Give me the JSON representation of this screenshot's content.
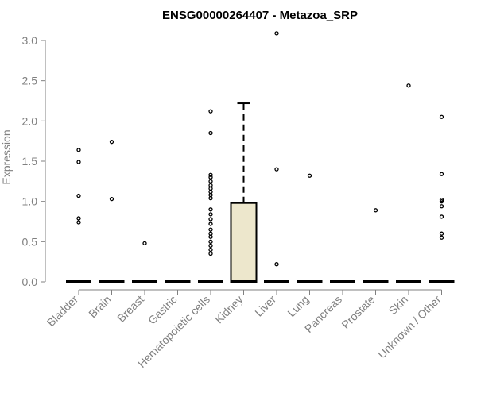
{
  "chart_data": {
    "type": "boxplot",
    "title": "ENSG00000264407 - Metazoa_SRP",
    "xlabel": "",
    "ylabel": "Expression",
    "ylim": [
      0,
      3.0
    ],
    "yticks": [
      0.0,
      0.5,
      1.0,
      1.5,
      2.0,
      2.5,
      3.0
    ],
    "ytick_labels": [
      "0.0",
      "0.5",
      "1.0",
      "1.5",
      "2.0",
      "2.5",
      "3.0"
    ],
    "categories": [
      "Bladder",
      "Brain",
      "Breast",
      "Gastric",
      "Hematopoietic cells",
      "Kidney",
      "Liver",
      "Lung",
      "Pancreas",
      "Prostate",
      "Skin",
      "Unknown / Other"
    ],
    "boxes": [
      {
        "category": "Bladder",
        "q1": 0,
        "median": 0,
        "q3": 0,
        "whisker_low": 0,
        "whisker_high": 0,
        "outliers": [
          0.74,
          0.79,
          1.07,
          1.49,
          1.64
        ]
      },
      {
        "category": "Brain",
        "q1": 0,
        "median": 0,
        "q3": 0,
        "whisker_low": 0,
        "whisker_high": 0,
        "outliers": [
          1.03,
          1.74
        ]
      },
      {
        "category": "Breast",
        "q1": 0,
        "median": 0,
        "q3": 0,
        "whisker_low": 0,
        "whisker_high": 0,
        "outliers": [
          0.48
        ]
      },
      {
        "category": "Gastric",
        "q1": 0,
        "median": 0,
        "q3": 0,
        "whisker_low": 0,
        "whisker_high": 0,
        "outliers": []
      },
      {
        "category": "Hematopoietic cells",
        "q1": 0,
        "median": 0,
        "q3": 0,
        "whisker_low": 0,
        "whisker_high": 0,
        "outliers": [
          0.35,
          0.4,
          0.45,
          0.5,
          0.56,
          0.6,
          0.65,
          0.72,
          0.78,
          0.84,
          0.9,
          1.04,
          1.08,
          1.12,
          1.16,
          1.2,
          1.25,
          1.3,
          1.33,
          1.85,
          2.12
        ]
      },
      {
        "category": "Kidney",
        "q1": 0,
        "median": 0,
        "q3": 0.98,
        "whisker_low": 0,
        "whisker_high": 2.22,
        "outliers": []
      },
      {
        "category": "Liver",
        "q1": 0,
        "median": 0,
        "q3": 0,
        "whisker_low": 0,
        "whisker_high": 0,
        "outliers": [
          0.22,
          1.4,
          3.09
        ]
      },
      {
        "category": "Lung",
        "q1": 0,
        "median": 0,
        "q3": 0,
        "whisker_low": 0,
        "whisker_high": 0,
        "outliers": [
          1.32
        ]
      },
      {
        "category": "Pancreas",
        "q1": 0,
        "median": 0,
        "q3": 0,
        "whisker_low": 0,
        "whisker_high": 0,
        "outliers": []
      },
      {
        "category": "Prostate",
        "q1": 0,
        "median": 0,
        "q3": 0,
        "whisker_low": 0,
        "whisker_high": 0,
        "outliers": [
          0.89
        ]
      },
      {
        "category": "Skin",
        "q1": 0,
        "median": 0,
        "q3": 0,
        "whisker_low": 0,
        "whisker_high": 0,
        "outliers": [
          2.44
        ]
      },
      {
        "category": "Unknown / Other",
        "q1": 0,
        "median": 0,
        "q3": 0,
        "whisker_low": 0,
        "whisker_high": 0,
        "outliers": [
          0.55,
          0.6,
          0.81,
          0.94,
          1.0,
          1.02,
          1.34,
          2.05
        ]
      }
    ],
    "box_fill": "#ede7cc",
    "box_stroke": "#000000",
    "grid": false,
    "legend": "none"
  }
}
